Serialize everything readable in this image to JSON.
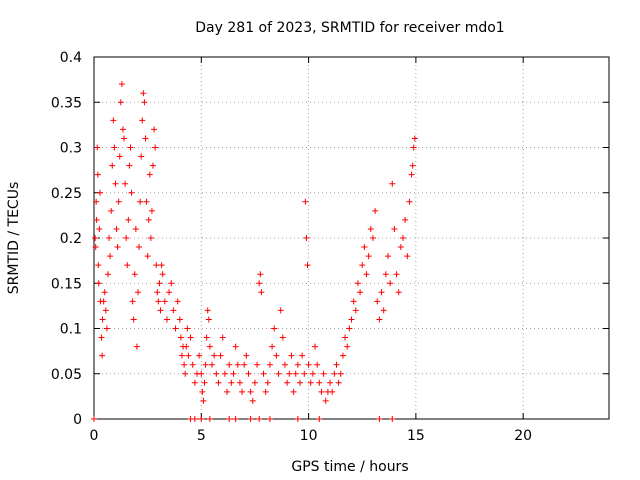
{
  "chart_data": {
    "type": "scatter",
    "title": "Day 281 of 2023, SRMTID for receiver mdo1",
    "xlabel": "GPS time / hours",
    "ylabel": "SRMTID / TECUs",
    "xlim": [
      0,
      24
    ],
    "ylim": [
      0,
      0.4
    ],
    "xticks": [
      0,
      5,
      10,
      15,
      20
    ],
    "xtick_labels": [
      "0",
      "5",
      "10",
      "15",
      "20"
    ],
    "yticks": [
      0,
      0.05,
      0.1,
      0.15,
      0.2,
      0.25,
      0.3,
      0.35,
      0.4
    ],
    "ytick_labels": [
      "0",
      "0.05",
      "0.1",
      "0.15",
      "0.2",
      "0.25",
      "0.3",
      "0.35",
      "0.4"
    ],
    "grid": true,
    "marker": "+",
    "marker_color": "#ff0000",
    "series": [
      {
        "name": "mdo1",
        "points": [
          [
            0.05,
            0.2
          ],
          [
            0.08,
            0.19
          ],
          [
            0.1,
            0.24
          ],
          [
            0.12,
            0.22
          ],
          [
            0.15,
            0.3
          ],
          [
            0.18,
            0.27
          ],
          [
            0.2,
            0.17
          ],
          [
            0.22,
            0.15
          ],
          [
            0.25,
            0.21
          ],
          [
            0.28,
            0.25
          ],
          [
            0.3,
            0.13
          ],
          [
            0.35,
            0.09
          ],
          [
            0.38,
            0.07
          ],
          [
            0.4,
            0.11
          ],
          [
            0.45,
            0.13
          ],
          [
            0.5,
            0.14
          ],
          [
            0.55,
            0.12
          ],
          [
            0.6,
            0.1
          ],
          [
            0.65,
            0.16
          ],
          [
            0.7,
            0.2
          ],
          [
            0.75,
            0.18
          ],
          [
            0.8,
            0.23
          ],
          [
            0.85,
            0.28
          ],
          [
            0.9,
            0.33
          ],
          [
            0.95,
            0.3
          ],
          [
            1.0,
            0.26
          ],
          [
            1.05,
            0.21
          ],
          [
            1.1,
            0.19
          ],
          [
            1.15,
            0.24
          ],
          [
            1.2,
            0.29
          ],
          [
            1.25,
            0.35
          ],
          [
            1.3,
            0.37
          ],
          [
            1.35,
            0.32
          ],
          [
            1.4,
            0.31
          ],
          [
            1.45,
            0.26
          ],
          [
            1.5,
            0.2
          ],
          [
            1.55,
            0.17
          ],
          [
            1.6,
            0.22
          ],
          [
            1.65,
            0.28
          ],
          [
            1.7,
            0.3
          ],
          [
            1.75,
            0.25
          ],
          [
            1.8,
            0.13
          ],
          [
            1.85,
            0.11
          ],
          [
            1.9,
            0.16
          ],
          [
            1.95,
            0.21
          ],
          [
            2.0,
            0.08
          ],
          [
            2.05,
            0.14
          ],
          [
            2.1,
            0.19
          ],
          [
            2.15,
            0.24
          ],
          [
            2.2,
            0.29
          ],
          [
            2.25,
            0.33
          ],
          [
            2.3,
            0.36
          ],
          [
            2.35,
            0.35
          ],
          [
            2.4,
            0.31
          ],
          [
            2.45,
            0.24
          ],
          [
            2.5,
            0.18
          ],
          [
            2.55,
            0.22
          ],
          [
            2.6,
            0.27
          ],
          [
            2.65,
            0.2
          ],
          [
            2.7,
            0.23
          ],
          [
            2.75,
            0.28
          ],
          [
            2.8,
            0.32
          ],
          [
            2.85,
            0.3
          ],
          [
            2.9,
            0.17
          ],
          [
            2.95,
            0.14
          ],
          [
            3.0,
            0.13
          ],
          [
            3.05,
            0.15
          ],
          [
            3.1,
            0.12
          ],
          [
            3.15,
            0.17
          ],
          [
            3.2,
            0.16
          ],
          [
            3.3,
            0.13
          ],
          [
            3.4,
            0.11
          ],
          [
            3.5,
            0.14
          ],
          [
            3.6,
            0.15
          ],
          [
            3.7,
            0.12
          ],
          [
            3.8,
            0.1
          ],
          [
            3.9,
            0.13
          ],
          [
            4.0,
            0.11
          ],
          [
            4.05,
            0.09
          ],
          [
            4.1,
            0.07
          ],
          [
            4.15,
            0.08
          ],
          [
            4.2,
            0.06
          ],
          [
            4.25,
            0.05
          ],
          [
            4.3,
            0.08
          ],
          [
            4.35,
            0.1
          ],
          [
            4.4,
            0.07
          ],
          [
            4.5,
            0.09
          ],
          [
            4.6,
            0.06
          ],
          [
            4.7,
            0.04
          ],
          [
            4.8,
            0.05
          ],
          [
            4.9,
            0.07
          ],
          [
            5.0,
            0.05
          ],
          [
            5.05,
            0.03
          ],
          [
            5.1,
            0.02
          ],
          [
            5.15,
            0.04
          ],
          [
            5.2,
            0.06
          ],
          [
            5.25,
            0.09
          ],
          [
            5.3,
            0.12
          ],
          [
            5.35,
            0.11
          ],
          [
            5.4,
            0.08
          ],
          [
            5.5,
            0.06
          ],
          [
            5.6,
            0.07
          ],
          [
            5.7,
            0.05
          ],
          [
            5.8,
            0.04
          ],
          [
            5.9,
            0.07
          ],
          [
            6.0,
            0.09
          ],
          [
            6.1,
            0.05
          ],
          [
            6.2,
            0.03
          ],
          [
            6.3,
            0.06
          ],
          [
            6.4,
            0.04
          ],
          [
            6.5,
            0.05
          ],
          [
            6.6,
            0.08
          ],
          [
            6.7,
            0.06
          ],
          [
            6.8,
            0.04
          ],
          [
            6.9,
            0.03
          ],
          [
            7.0,
            0.06
          ],
          [
            7.1,
            0.07
          ],
          [
            7.2,
            0.05
          ],
          [
            7.3,
            0.03
          ],
          [
            7.4,
            0.02
          ],
          [
            7.5,
            0.04
          ],
          [
            7.6,
            0.06
          ],
          [
            7.7,
            0.15
          ],
          [
            7.75,
            0.16
          ],
          [
            7.8,
            0.14
          ],
          [
            7.9,
            0.05
          ],
          [
            8.0,
            0.03
          ],
          [
            8.1,
            0.04
          ],
          [
            8.2,
            0.06
          ],
          [
            8.3,
            0.08
          ],
          [
            8.4,
            0.1
          ],
          [
            8.5,
            0.07
          ],
          [
            8.6,
            0.05
          ],
          [
            8.7,
            0.12
          ],
          [
            8.8,
            0.09
          ],
          [
            8.9,
            0.06
          ],
          [
            9.0,
            0.04
          ],
          [
            9.1,
            0.05
          ],
          [
            9.2,
            0.07
          ],
          [
            9.3,
            0.03
          ],
          [
            9.4,
            0.05
          ],
          [
            9.5,
            0.06
          ],
          [
            9.6,
            0.04
          ],
          [
            9.7,
            0.07
          ],
          [
            9.8,
            0.05
          ],
          [
            9.85,
            0.24
          ],
          [
            9.9,
            0.2
          ],
          [
            9.95,
            0.17
          ],
          [
            10.0,
            0.06
          ],
          [
            10.1,
            0.04
          ],
          [
            10.2,
            0.05
          ],
          [
            10.3,
            0.08
          ],
          [
            10.4,
            0.06
          ],
          [
            10.5,
            0.04
          ],
          [
            10.6,
            0.03
          ],
          [
            10.7,
            0.05
          ],
          [
            10.8,
            0.02
          ],
          [
            10.9,
            0.03
          ],
          [
            11.0,
            0.04
          ],
          [
            11.1,
            0.03
          ],
          [
            11.2,
            0.05
          ],
          [
            11.3,
            0.06
          ],
          [
            11.4,
            0.04
          ],
          [
            11.5,
            0.05
          ],
          [
            11.6,
            0.07
          ],
          [
            11.7,
            0.09
          ],
          [
            11.8,
            0.08
          ],
          [
            11.9,
            0.1
          ],
          [
            12.0,
            0.11
          ],
          [
            12.1,
            0.13
          ],
          [
            12.2,
            0.12
          ],
          [
            12.3,
            0.15
          ],
          [
            12.4,
            0.14
          ],
          [
            12.5,
            0.17
          ],
          [
            12.6,
            0.19
          ],
          [
            12.7,
            0.16
          ],
          [
            12.8,
            0.18
          ],
          [
            12.9,
            0.21
          ],
          [
            13.0,
            0.2
          ],
          [
            13.1,
            0.23
          ],
          [
            13.2,
            0.13
          ],
          [
            13.3,
            0.11
          ],
          [
            13.4,
            0.14
          ],
          [
            13.5,
            0.12
          ],
          [
            13.6,
            0.16
          ],
          [
            13.7,
            0.18
          ],
          [
            13.8,
            0.15
          ],
          [
            13.9,
            0.26
          ],
          [
            14.0,
            0.21
          ],
          [
            14.1,
            0.16
          ],
          [
            14.2,
            0.14
          ],
          [
            14.3,
            0.19
          ],
          [
            14.4,
            0.2
          ],
          [
            14.5,
            0.22
          ],
          [
            14.6,
            0.18
          ],
          [
            14.7,
            0.24
          ],
          [
            14.8,
            0.27
          ],
          [
            14.85,
            0.28
          ],
          [
            14.9,
            0.3
          ],
          [
            14.95,
            0.31
          ],
          [
            0.0,
            0.0
          ],
          [
            4.5,
            0.0
          ],
          [
            4.7,
            0.0
          ],
          [
            5.0,
            0.0
          ],
          [
            5.4,
            0.0
          ],
          [
            6.3,
            0.0
          ],
          [
            6.6,
            0.0
          ],
          [
            7.3,
            0.0
          ],
          [
            7.7,
            0.0
          ],
          [
            8.2,
            0.0
          ],
          [
            9.5,
            0.0
          ],
          [
            10.5,
            0.0
          ],
          [
            13.3,
            0.0
          ],
          [
            13.9,
            0.0
          ]
        ]
      }
    ]
  }
}
